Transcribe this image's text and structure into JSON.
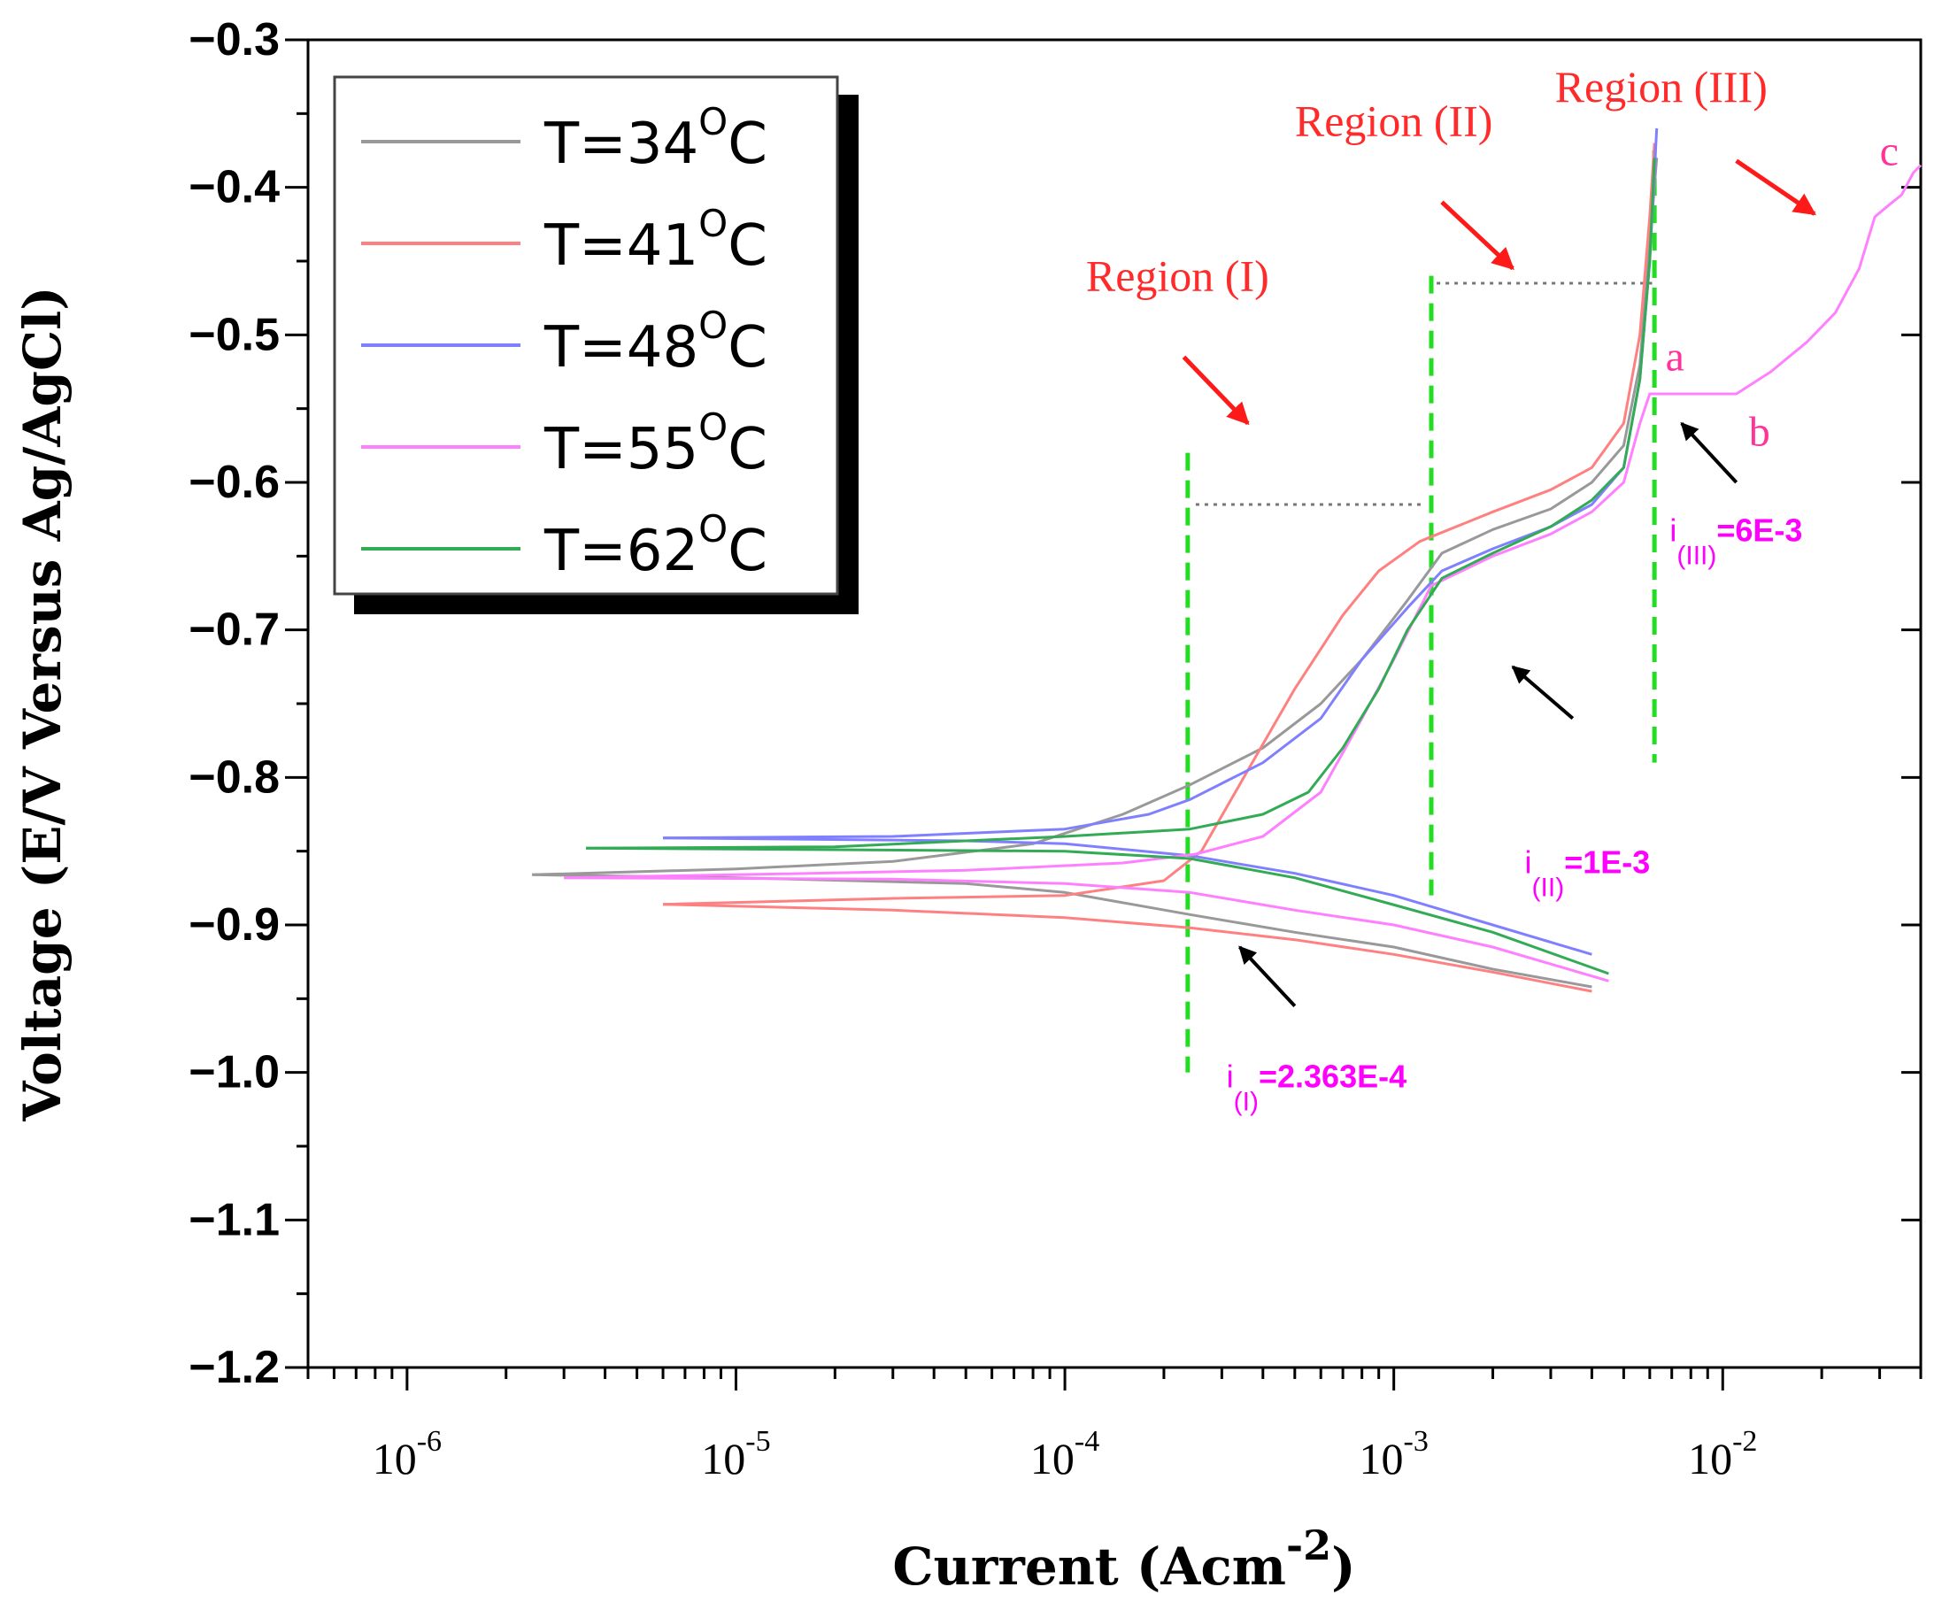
{
  "chart_data": {
    "type": "line",
    "xscale": "log",
    "xlabel": "Current (Acm",
    "xlabel_sup": "-2",
    "xlabel_close": ")",
    "ylabel": "Voltage (E/V Versus Ag/AgCl)",
    "xlim": [
      5e-07,
      0.04
    ],
    "ylim": [
      -1.2,
      -0.3
    ],
    "x_ticks": [
      {
        "value": 1e-06,
        "base": "10",
        "exp": "-6"
      },
      {
        "value": 1e-05,
        "base": "10",
        "exp": "-5"
      },
      {
        "value": 0.0001,
        "base": "10",
        "exp": "-4"
      },
      {
        "value": 0.001,
        "base": "10",
        "exp": "-3"
      },
      {
        "value": 0.01,
        "base": "10",
        "exp": "-2"
      }
    ],
    "y_ticks": [
      {
        "value": -0.3,
        "label": "−0.3"
      },
      {
        "value": -0.4,
        "label": "−0.4"
      },
      {
        "value": -0.5,
        "label": "−0.5"
      },
      {
        "value": -0.6,
        "label": "−0.6"
      },
      {
        "value": -0.7,
        "label": "−0.7"
      },
      {
        "value": -0.8,
        "label": "−0.8"
      },
      {
        "value": -0.9,
        "label": "−0.9"
      },
      {
        "value": -1.0,
        "label": "−1.0"
      },
      {
        "value": -1.1,
        "label": "−1.1"
      },
      {
        "value": -1.2,
        "label": "−1.2"
      }
    ],
    "legend_position": "top-left",
    "series": [
      {
        "name": "T=34",
        "unit": "C",
        "degree": "O",
        "color": "#999999",
        "anodic": [
          [
            2.4e-06,
            -0.866
          ],
          [
            1e-05,
            -0.862
          ],
          [
            3e-05,
            -0.857
          ],
          [
            8e-05,
            -0.845
          ],
          [
            0.00015,
            -0.825
          ],
          [
            0.00024,
            -0.805
          ],
          [
            0.0004,
            -0.78
          ],
          [
            0.0006,
            -0.75
          ],
          [
            0.0008,
            -0.72
          ],
          [
            0.0011,
            -0.68
          ],
          [
            0.0014,
            -0.648
          ],
          [
            0.002,
            -0.632
          ],
          [
            0.003,
            -0.618
          ],
          [
            0.004,
            -0.6
          ],
          [
            0.005,
            -0.575
          ],
          [
            0.0056,
            -0.52
          ],
          [
            0.006,
            -0.44
          ],
          [
            0.0063,
            -0.38
          ]
        ],
        "cathodic": [
          [
            2.4e-06,
            -0.866
          ],
          [
            1e-05,
            -0.868
          ],
          [
            5e-05,
            -0.872
          ],
          [
            0.0001,
            -0.878
          ],
          [
            0.00024,
            -0.893
          ],
          [
            0.0005,
            -0.905
          ],
          [
            0.001,
            -0.915
          ],
          [
            0.002,
            -0.93
          ],
          [
            0.004,
            -0.942
          ]
        ]
      },
      {
        "name": "T=41",
        "unit": "C",
        "degree": "O",
        "color": "#ff8080",
        "anodic": [
          [
            6e-06,
            -0.886
          ],
          [
            3e-05,
            -0.882
          ],
          [
            0.0001,
            -0.88
          ],
          [
            0.0002,
            -0.87
          ],
          [
            0.00026,
            -0.85
          ],
          [
            0.00035,
            -0.8
          ],
          [
            0.0005,
            -0.74
          ],
          [
            0.0007,
            -0.69
          ],
          [
            0.0009,
            -0.66
          ],
          [
            0.0012,
            -0.64
          ],
          [
            0.002,
            -0.62
          ],
          [
            0.003,
            -0.605
          ],
          [
            0.004,
            -0.59
          ],
          [
            0.005,
            -0.56
          ],
          [
            0.0056,
            -0.5
          ],
          [
            0.006,
            -0.42
          ],
          [
            0.0062,
            -0.37
          ]
        ],
        "cathodic": [
          [
            6e-06,
            -0.886
          ],
          [
            3e-05,
            -0.89
          ],
          [
            0.0001,
            -0.895
          ],
          [
            0.00024,
            -0.902
          ],
          [
            0.0005,
            -0.91
          ],
          [
            0.001,
            -0.92
          ],
          [
            0.002,
            -0.932
          ],
          [
            0.004,
            -0.945
          ]
        ]
      },
      {
        "name": "T=48",
        "unit": "C",
        "degree": "O",
        "color": "#8080ff",
        "anodic": [
          [
            6e-06,
            -0.841
          ],
          [
            3e-05,
            -0.84
          ],
          [
            0.0001,
            -0.835
          ],
          [
            0.00018,
            -0.825
          ],
          [
            0.00024,
            -0.815
          ],
          [
            0.0004,
            -0.79
          ],
          [
            0.0006,
            -0.76
          ],
          [
            0.0008,
            -0.72
          ],
          [
            0.0011,
            -0.685
          ],
          [
            0.0014,
            -0.66
          ],
          [
            0.002,
            -0.645
          ],
          [
            0.003,
            -0.63
          ],
          [
            0.004,
            -0.615
          ],
          [
            0.005,
            -0.59
          ],
          [
            0.0056,
            -0.53
          ],
          [
            0.006,
            -0.45
          ],
          [
            0.0063,
            -0.36
          ]
        ],
        "cathodic": [
          [
            6e-06,
            -0.841
          ],
          [
            5e-05,
            -0.843
          ],
          [
            0.0001,
            -0.845
          ],
          [
            0.00024,
            -0.853
          ],
          [
            0.0005,
            -0.865
          ],
          [
            0.001,
            -0.88
          ],
          [
            0.002,
            -0.9
          ],
          [
            0.004,
            -0.92
          ]
        ]
      },
      {
        "name": "T=55",
        "unit": "C",
        "degree": "O",
        "color": "#ff80ff",
        "anodic": [
          [
            3e-06,
            -0.868
          ],
          [
            1e-05,
            -0.866
          ],
          [
            5e-05,
            -0.863
          ],
          [
            0.00015,
            -0.858
          ],
          [
            0.00025,
            -0.852
          ],
          [
            0.0004,
            -0.84
          ],
          [
            0.0006,
            -0.81
          ],
          [
            0.0008,
            -0.76
          ],
          [
            0.001,
            -0.72
          ],
          [
            0.0013,
            -0.67
          ],
          [
            0.002,
            -0.65
          ],
          [
            0.003,
            -0.635
          ],
          [
            0.004,
            -0.62
          ],
          [
            0.005,
            -0.6
          ],
          [
            0.0056,
            -0.56
          ],
          [
            0.006,
            -0.54
          ],
          [
            0.011,
            -0.54
          ],
          [
            0.014,
            -0.525
          ],
          [
            0.018,
            -0.505
          ],
          [
            0.022,
            -0.485
          ],
          [
            0.026,
            -0.455
          ],
          [
            0.029,
            -0.42
          ],
          [
            0.032,
            -0.412
          ],
          [
            0.035,
            -0.405
          ],
          [
            0.038,
            -0.39
          ],
          [
            0.04,
            -0.385
          ]
        ],
        "cathodic": [
          [
            3e-06,
            -0.868
          ],
          [
            3e-05,
            -0.869
          ],
          [
            0.0001,
            -0.872
          ],
          [
            0.00024,
            -0.878
          ],
          [
            0.0005,
            -0.89
          ],
          [
            0.001,
            -0.9
          ],
          [
            0.002,
            -0.915
          ],
          [
            0.0045,
            -0.938
          ]
        ]
      },
      {
        "name": "T=62",
        "unit": "C",
        "degree": "O",
        "color": "#33aa55",
        "anodic": [
          [
            3.5e-06,
            -0.848
          ],
          [
            2e-05,
            -0.847
          ],
          [
            0.0001,
            -0.84
          ],
          [
            0.00024,
            -0.835
          ],
          [
            0.0004,
            -0.825
          ],
          [
            0.00055,
            -0.81
          ],
          [
            0.0007,
            -0.78
          ],
          [
            0.0009,
            -0.74
          ],
          [
            0.0011,
            -0.7
          ],
          [
            0.0014,
            -0.665
          ],
          [
            0.002,
            -0.648
          ],
          [
            0.003,
            -0.63
          ],
          [
            0.004,
            -0.612
          ],
          [
            0.005,
            -0.59
          ],
          [
            0.0056,
            -0.53
          ],
          [
            0.006,
            -0.45
          ],
          [
            0.0062,
            -0.38
          ]
        ],
        "cathodic": [
          [
            3.5e-06,
            -0.848
          ],
          [
            2e-05,
            -0.849
          ],
          [
            0.0001,
            -0.85
          ],
          [
            0.00024,
            -0.855
          ],
          [
            0.0005,
            -0.868
          ],
          [
            0.00095,
            -0.885
          ],
          [
            0.002,
            -0.905
          ],
          [
            0.0045,
            -0.933
          ]
        ]
      }
    ],
    "regions": [
      {
        "label": "Region (I)",
        "text_x": 0.00022,
        "text_y": -0.47,
        "arrow_from": [
          0.00023,
          -0.515
        ],
        "arrow_to": [
          0.00036,
          -0.56
        ]
      },
      {
        "label": "Region (II)",
        "text_x": 0.001,
        "text_y": -0.365,
        "arrow_from": [
          0.0014,
          -0.41
        ],
        "arrow_to": [
          0.0023,
          -0.455
        ]
      },
      {
        "label": "Region (III)",
        "text_x": 0.0065,
        "text_y": -0.342,
        "arrow_from": [
          0.011,
          -0.382
        ],
        "arrow_to": [
          0.019,
          -0.418
        ]
      }
    ],
    "vertical_lines": [
      {
        "x": 0.0002363,
        "y_from": -0.58,
        "y_to": -1.0,
        "color": "#22dd22"
      },
      {
        "x": 0.0013,
        "y_from": -0.46,
        "y_to": -0.88,
        "color": "#22dd22"
      },
      {
        "x": 0.0062,
        "y_from": -0.375,
        "y_to": -0.79,
        "color": "#22dd22"
      }
    ],
    "dotted_lines": [
      {
        "x_from": 0.00025,
        "x_to": 0.00125,
        "y": -0.615
      },
      {
        "x_from": 0.00135,
        "x_to": 0.0061,
        "y": -0.465
      }
    ],
    "current_annotations": [
      {
        "symbol": "i",
        "sub": "(I)",
        "value": "=2.363E-4",
        "x": 0.00031,
        "y": -1.01,
        "arrow_from": [
          0.0005,
          -0.955
        ],
        "arrow_to": [
          0.00034,
          -0.915
        ]
      },
      {
        "symbol": "i",
        "sub": "(II)",
        "value": "=1E-3",
        "x": 0.0025,
        "y": -0.865,
        "arrow_from": [
          0.0035,
          -0.76
        ],
        "arrow_to": [
          0.0023,
          -0.725
        ]
      },
      {
        "symbol": "i",
        "sub": "(III)",
        "value": "=6E-3",
        "x": 0.0069,
        "y": -0.64,
        "arrow_from": [
          0.011,
          -0.6
        ],
        "arrow_to": [
          0.0075,
          -0.56
        ]
      }
    ],
    "point_labels": [
      {
        "label": "a",
        "x": 0.0067,
        "y": -0.524
      },
      {
        "label": "b",
        "x": 0.012,
        "y": -0.575
      },
      {
        "label": "c",
        "x": 0.03,
        "y": -0.385
      }
    ]
  }
}
